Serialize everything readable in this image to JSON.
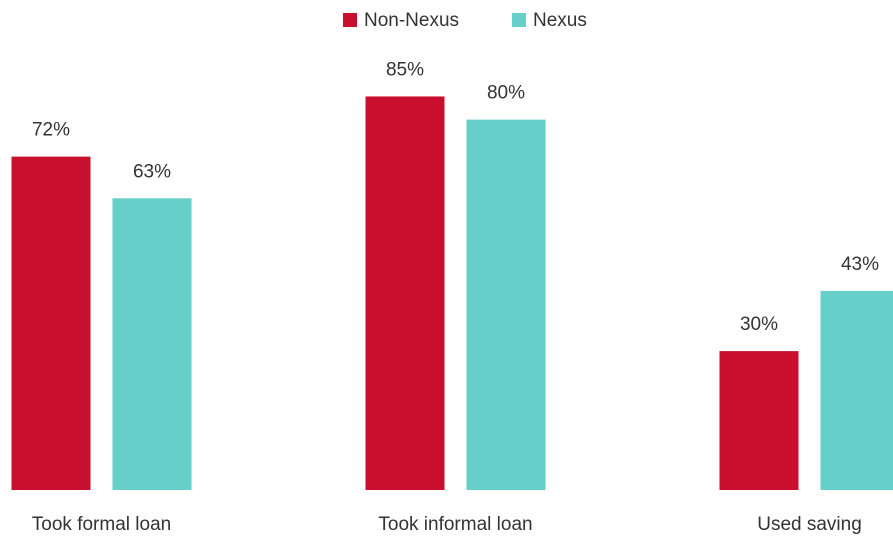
{
  "chart_data": {
    "type": "bar",
    "categories": [
      "Took formal loan",
      "Took informal loan",
      "Used saving"
    ],
    "series": [
      {
        "name": "Non-Nexus",
        "color": "#c8102e",
        "values": [
          72,
          85,
          30
        ],
        "value_labels": [
          "72%",
          "85%",
          "30%"
        ]
      },
      {
        "name": "Nexus",
        "color": "#66cfca",
        "values": [
          63,
          80,
          43
        ],
        "value_labels": [
          "63%",
          "80%",
          "43%"
        ]
      }
    ],
    "ylim": [
      0,
      100
    ],
    "legend": "top"
  }
}
